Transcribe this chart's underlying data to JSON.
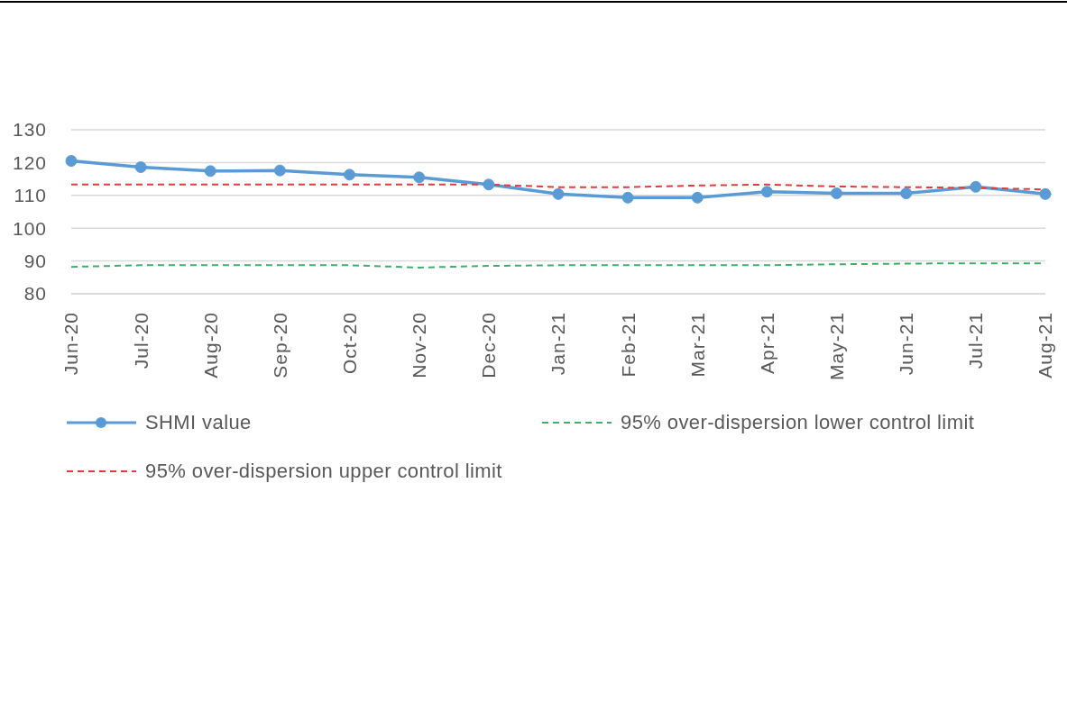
{
  "chart_data": {
    "type": "line",
    "categories": [
      "Jun-20",
      "Jul-20",
      "Aug-20",
      "Sep-20",
      "Oct-20",
      "Nov-20",
      "Dec-20",
      "Jan-21",
      "Feb-21",
      "Mar-21",
      "Apr-21",
      "May-21",
      "Jun-21",
      "Jul-21",
      "Aug-21"
    ],
    "series": [
      {
        "name": "SHMI value",
        "color": "#5b9bd5",
        "marker": "circle",
        "line_style": "solid",
        "values": [
          120.5,
          118.6,
          117.4,
          117.6,
          116.3,
          115.5,
          113.3,
          110.4,
          109.3,
          109.3,
          111.1,
          110.6,
          110.6,
          112.6,
          110.4
        ]
      },
      {
        "name": "95% over-dispersion lower control limit",
        "color": "#3fae6a",
        "marker": "none",
        "line_style": "dashed",
        "values": [
          88.2,
          88.7,
          88.7,
          88.7,
          88.7,
          88.0,
          88.5,
          88.7,
          88.7,
          88.7,
          88.7,
          89.0,
          89.2,
          89.3,
          89.3
        ]
      },
      {
        "name": "95% over-dispersion upper control limit",
        "color": "#e23b3b",
        "marker": "none",
        "line_style": "dashed",
        "values": [
          113.3,
          113.3,
          113.3,
          113.3,
          113.3,
          113.3,
          113.3,
          112.5,
          112.5,
          113.0,
          113.3,
          112.7,
          112.5,
          112.3,
          111.8
        ]
      }
    ],
    "ylim": [
      80,
      130
    ],
    "yticks": [
      80,
      90,
      100,
      110,
      120,
      130
    ],
    "grid": "y",
    "legend": "bottom"
  }
}
